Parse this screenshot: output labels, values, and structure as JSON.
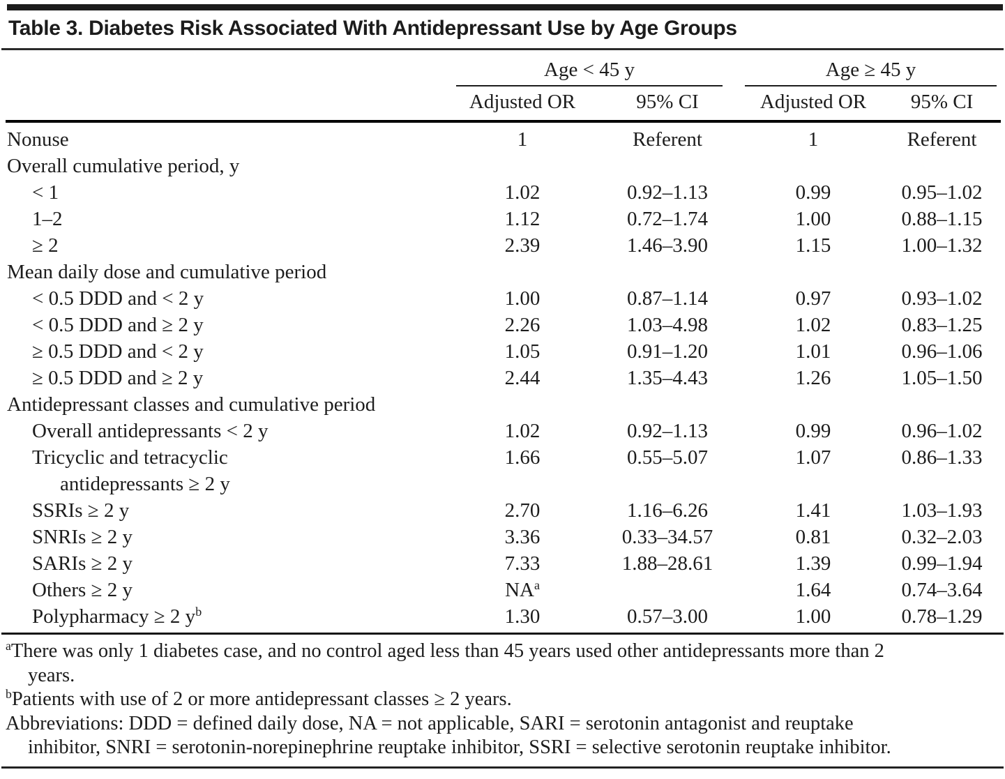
{
  "colors": {
    "text": "#1c1c1c",
    "rule": "#000000",
    "background": "#ffffff"
  },
  "page": {
    "title": "Table 3. Diabetes Risk Associated With Antidepressant Use by Age Groups"
  },
  "table": {
    "column_groups": [
      {
        "label": "Age < 45 y"
      },
      {
        "label": "Age ≥ 45 y"
      }
    ],
    "sub_headers": [
      "Adjusted OR",
      "95% CI",
      "Adjusted OR",
      "95% CI"
    ],
    "rows": [
      {
        "label": "Nonuse",
        "indent": 0,
        "cells": [
          "1",
          "Referent",
          "1",
          "Referent"
        ]
      },
      {
        "label": "Overall cumulative period, y",
        "indent": 0,
        "cells": [
          "",
          "",
          "",
          ""
        ]
      },
      {
        "label": "< 1",
        "indent": 1,
        "cells": [
          "1.02",
          "0.92–1.13",
          "0.99",
          "0.95–1.02"
        ]
      },
      {
        "label": "1–2",
        "indent": 1,
        "cells": [
          "1.12",
          "0.72–1.74",
          "1.00",
          "0.88–1.15"
        ]
      },
      {
        "label": "≥ 2",
        "indent": 1,
        "cells": [
          "2.39",
          "1.46–3.90",
          "1.15",
          "1.00–1.32"
        ]
      },
      {
        "label": "Mean daily dose and cumulative period",
        "indent": 0,
        "cells": [
          "",
          "",
          "",
          ""
        ]
      },
      {
        "label": "< 0.5 DDD and < 2 y",
        "indent": 1,
        "cells": [
          "1.00",
          "0.87–1.14",
          "0.97",
          "0.93–1.02"
        ]
      },
      {
        "label": "< 0.5 DDD and ≥ 2 y",
        "indent": 1,
        "cells": [
          "2.26",
          "1.03–4.98",
          "1.02",
          "0.83–1.25"
        ]
      },
      {
        "label": "≥ 0.5 DDD and < 2 y",
        "indent": 1,
        "cells": [
          "1.05",
          "0.91–1.20",
          "1.01",
          "0.96–1.06"
        ]
      },
      {
        "label": "≥ 0.5 DDD and ≥ 2 y",
        "indent": 1,
        "cells": [
          "2.44",
          "1.35–4.43",
          "1.26",
          "1.05–1.50"
        ]
      },
      {
        "label": "Antidepressant classes and cumulative period",
        "indent": 0,
        "cells": [
          "",
          "",
          "",
          ""
        ]
      },
      {
        "label": "Overall antidepressants < 2 y",
        "indent": 1,
        "cells": [
          "1.02",
          "0.92–1.13",
          "0.99",
          "0.96–1.02"
        ]
      },
      {
        "label": "Tricyclic and tetracyclic",
        "label2": "antidepressants ≥ 2 y",
        "indent": 1,
        "cells": [
          "1.66",
          "0.55–5.07",
          "1.07",
          "0.86–1.33"
        ]
      },
      {
        "label": "SSRIs ≥ 2 y",
        "indent": 1,
        "cells": [
          "2.70",
          "1.16–6.26",
          "1.41",
          "1.03–1.93"
        ]
      },
      {
        "label": "SNRIs ≥ 2 y",
        "indent": 1,
        "cells": [
          "3.36",
          "0.33–34.57",
          "0.81",
          "0.32–2.03"
        ]
      },
      {
        "label": "SARIs ≥ 2 y",
        "indent": 1,
        "cells": [
          "7.33",
          "1.88–28.61",
          "1.39",
          "0.99–1.94"
        ]
      },
      {
        "label": "Others ≥ 2 y",
        "indent": 1,
        "cells": [
          {
            "t": "NA",
            "sup": "a"
          },
          "",
          "1.64",
          "0.74–3.64"
        ]
      },
      {
        "label": "Polypharmacy ≥ 2 y",
        "label_sup": "b",
        "indent": 1,
        "cells": [
          "1.30",
          "0.57–3.00",
          "1.00",
          "0.78–1.29"
        ]
      }
    ]
  },
  "footnotes": [
    {
      "sup": "a",
      "text": "There was only 1 diabetes case, and no control aged less than 45 years used other antidepressants more than 2 years."
    },
    {
      "sup": "b",
      "text": "Patients with use of 2 or more antidepressant classes ≥ 2 years."
    },
    {
      "sup": "",
      "text": "Abbreviations: DDD = defined daily dose, NA = not applicable, SARI = serotonin antagonist and reuptake inhibitor, SNRI = serotonin-norepinephrine reuptake inhibitor, SSRI = selective serotonin reuptake inhibitor."
    }
  ]
}
